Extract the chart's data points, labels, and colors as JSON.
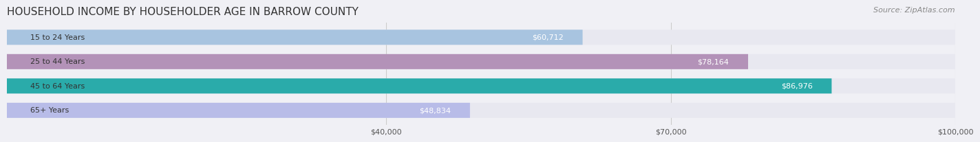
{
  "title": "HOUSEHOLD INCOME BY HOUSEHOLDER AGE IN BARROW COUNTY",
  "source": "Source: ZipAtlas.com",
  "categories": [
    "15 to 24 Years",
    "25 to 44 Years",
    "45 to 64 Years",
    "65+ Years"
  ],
  "values": [
    60712,
    78164,
    86976,
    48834
  ],
  "labels": [
    "$60,712",
    "$78,164",
    "$86,976",
    "$48,834"
  ],
  "bar_colors": [
    "#a8c4e0",
    "#b392b8",
    "#2aabaa",
    "#b8bce8"
  ],
  "bar_bg_color": "#e8e8f0",
  "xmin": 0,
  "xmax": 100000,
  "xticks": [
    40000,
    70000,
    100000
  ],
  "xtick_labels": [
    "$40,000",
    "$70,000",
    "$100,000"
  ],
  "background_color": "#f0f0f5",
  "title_fontsize": 11,
  "source_fontsize": 8,
  "label_fontsize": 8,
  "tick_fontsize": 8,
  "bar_height": 0.62,
  "bar_label_color_inside": "#ffffff",
  "bar_label_color_outside": "#555555"
}
